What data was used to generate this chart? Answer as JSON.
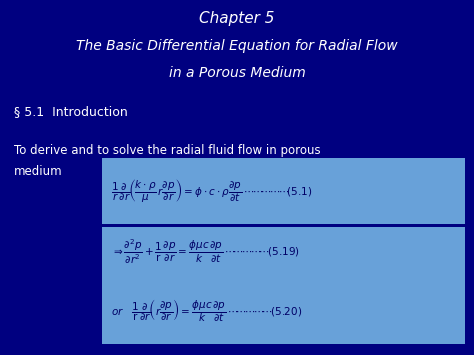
{
  "bg_color": "#000080",
  "title_color": "#FFFFFF",
  "section_color": "#FFFFFF",
  "text_color": "#FFFFFF",
  "box_facecolor": "#7BBFEA",
  "eq_text_color": "#000066",
  "title_line1": "Chapter 5",
  "title_line2": "The Basic Differential Equation for Radial Flow",
  "title_line3": "in a Porous Medium",
  "section": "§ 5.1  Introduction",
  "intro_text1": "To derive and to solve the radial fluid flow in porous",
  "intro_text2": "medium",
  "figsize": [
    4.74,
    3.55
  ],
  "dpi": 100,
  "title1_fs": 11,
  "title2_fs": 10,
  "section_fs": 9,
  "body_fs": 8.5,
  "eq_fs": 7.5
}
